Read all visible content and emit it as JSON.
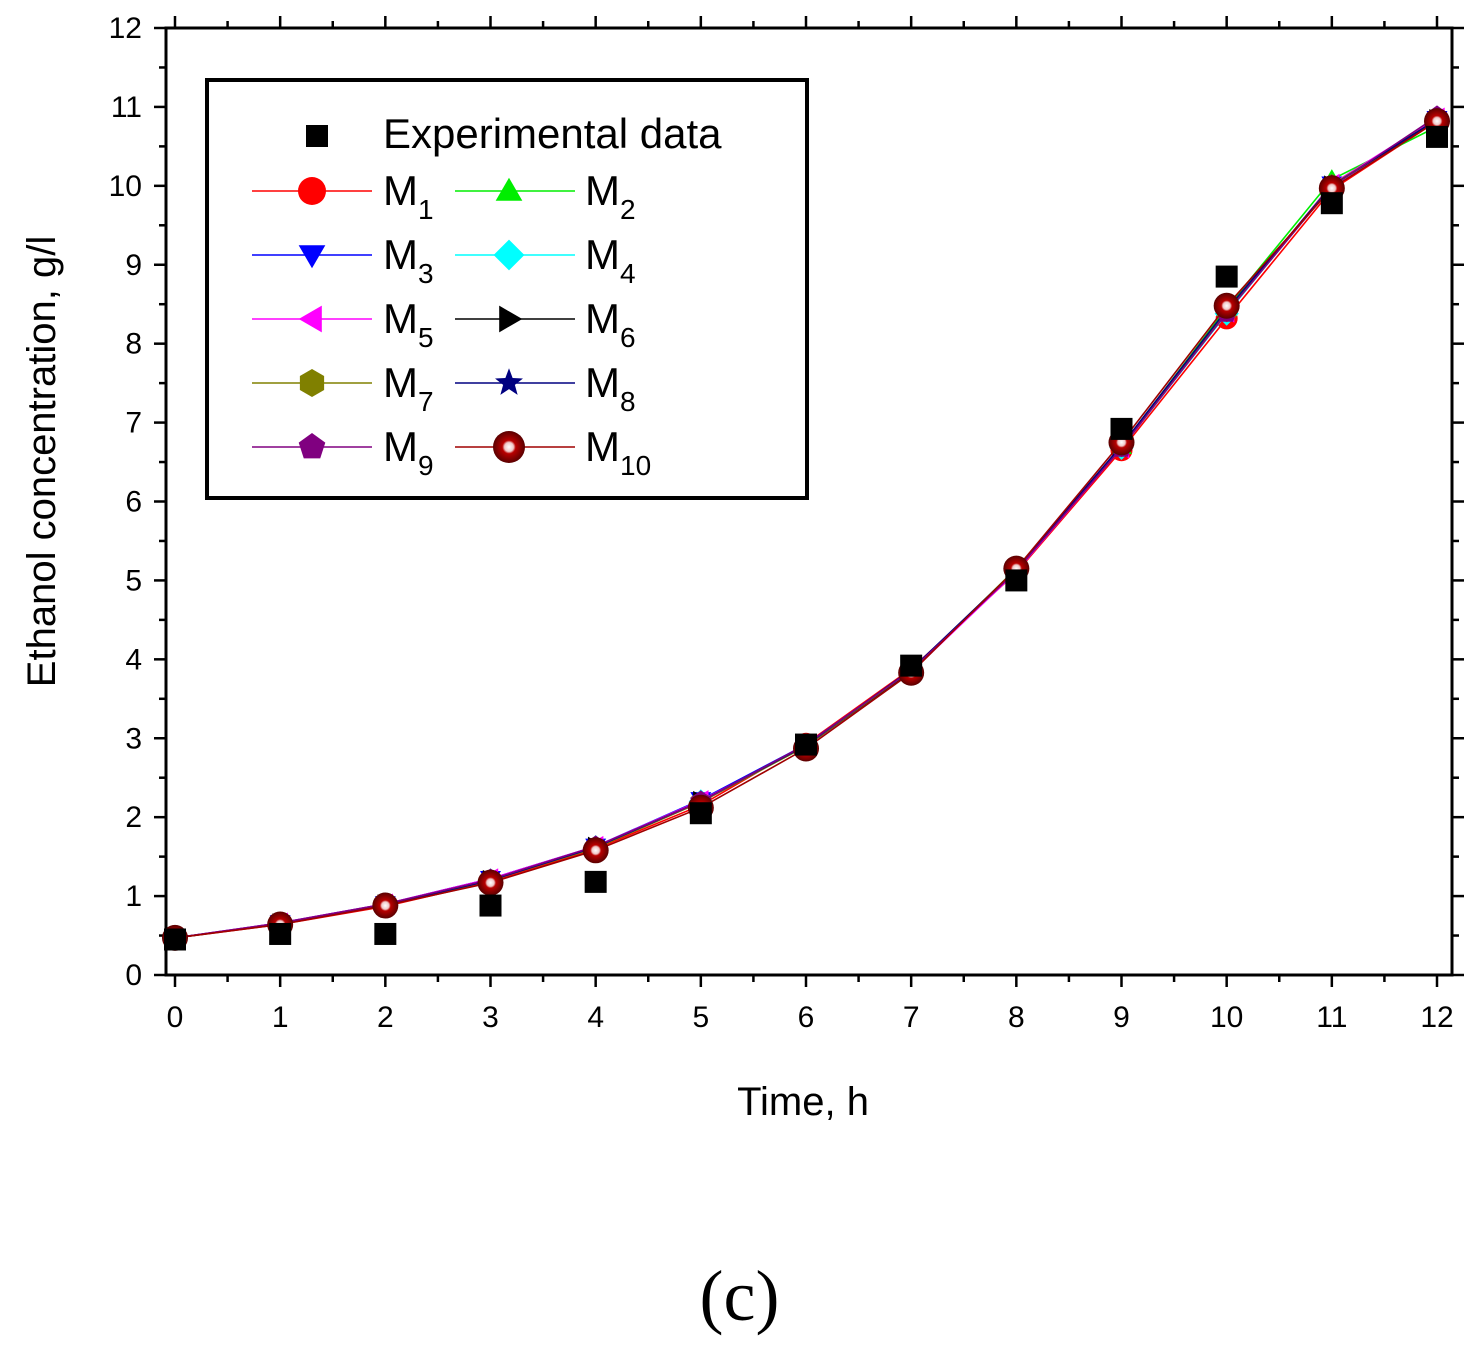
{
  "caption": "(c)",
  "chart_data": {
    "type": "line",
    "title": "",
    "xlabel": "Time, h",
    "ylabel": "Ethanol concentration, g/l",
    "xlim": [
      0,
      12
    ],
    "ylim": [
      0,
      12
    ],
    "xticks": [
      0,
      1,
      2,
      3,
      4,
      5,
      6,
      7,
      8,
      9,
      10,
      11,
      12
    ],
    "yticks": [
      0,
      1,
      2,
      3,
      4,
      5,
      6,
      7,
      8,
      9,
      10,
      11,
      12
    ],
    "legend_position": "top-left",
    "x": [
      0,
      1,
      2,
      3,
      4,
      5,
      6,
      7,
      8,
      9,
      10,
      11,
      12
    ],
    "experimental": {
      "name": "Experimental data",
      "color": "#000000",
      "marker": "square",
      "values": [
        0.45,
        0.52,
        0.52,
        0.88,
        1.18,
        2.05,
        2.92,
        3.92,
        5.0,
        6.92,
        8.85,
        9.78,
        10.62
      ]
    },
    "series": [
      {
        "name": "M",
        "sub": "1",
        "color": "#ff0000",
        "marker": "circle",
        "values": [
          0.47,
          0.64,
          0.87,
          1.18,
          1.6,
          2.15,
          2.93,
          3.88,
          5.1,
          6.65,
          8.32,
          9.95,
          10.82
        ]
      },
      {
        "name": "M",
        "sub": "2",
        "color": "#00ee00",
        "marker": "triangle-up",
        "values": [
          0.47,
          0.65,
          0.89,
          1.2,
          1.62,
          2.2,
          2.9,
          3.85,
          5.15,
          6.7,
          8.45,
          10.08,
          10.75
        ]
      },
      {
        "name": "M",
        "sub": "3",
        "color": "#0000ff",
        "marker": "triangle-down",
        "values": [
          0.47,
          0.66,
          0.9,
          1.22,
          1.63,
          2.22,
          2.92,
          3.86,
          5.13,
          6.7,
          8.4,
          10.02,
          10.85
        ]
      },
      {
        "name": "M",
        "sub": "4",
        "color": "#00ffff",
        "marker": "diamond",
        "values": [
          0.47,
          0.65,
          0.89,
          1.2,
          1.62,
          2.2,
          2.91,
          3.86,
          5.13,
          6.68,
          8.38,
          10.0,
          10.84
        ]
      },
      {
        "name": "M",
        "sub": "5",
        "color": "#ff00ff",
        "marker": "triangle-left",
        "values": [
          0.47,
          0.66,
          0.9,
          1.22,
          1.63,
          2.21,
          2.9,
          3.84,
          5.11,
          6.68,
          8.4,
          10.02,
          10.86
        ]
      },
      {
        "name": "M",
        "sub": "6",
        "color": "#000000",
        "marker": "triangle-right",
        "values": [
          0.47,
          0.65,
          0.89,
          1.2,
          1.62,
          2.2,
          2.9,
          3.85,
          5.13,
          6.7,
          8.42,
          10.0,
          10.84
        ]
      },
      {
        "name": "M",
        "sub": "7",
        "color": "#808000",
        "marker": "hexagon",
        "values": [
          0.47,
          0.65,
          0.89,
          1.2,
          1.61,
          2.19,
          2.9,
          3.86,
          5.14,
          6.7,
          8.41,
          10.01,
          10.84
        ]
      },
      {
        "name": "M",
        "sub": "8",
        "color": "#000080",
        "marker": "star",
        "values": [
          0.47,
          0.65,
          0.89,
          1.2,
          1.62,
          2.2,
          2.91,
          3.87,
          5.14,
          6.71,
          8.43,
          10.0,
          10.84
        ]
      },
      {
        "name": "M",
        "sub": "9",
        "color": "#800080",
        "marker": "pentagon",
        "values": [
          0.47,
          0.66,
          0.9,
          1.21,
          1.63,
          2.2,
          2.92,
          3.86,
          5.12,
          6.68,
          8.39,
          9.99,
          10.88
        ]
      },
      {
        "name": "M",
        "sub": "10",
        "color": "#a00000",
        "marker": "ball",
        "values": [
          0.47,
          0.64,
          0.88,
          1.17,
          1.58,
          2.12,
          2.87,
          3.83,
          5.15,
          6.75,
          8.48,
          9.97,
          10.82
        ]
      }
    ]
  }
}
